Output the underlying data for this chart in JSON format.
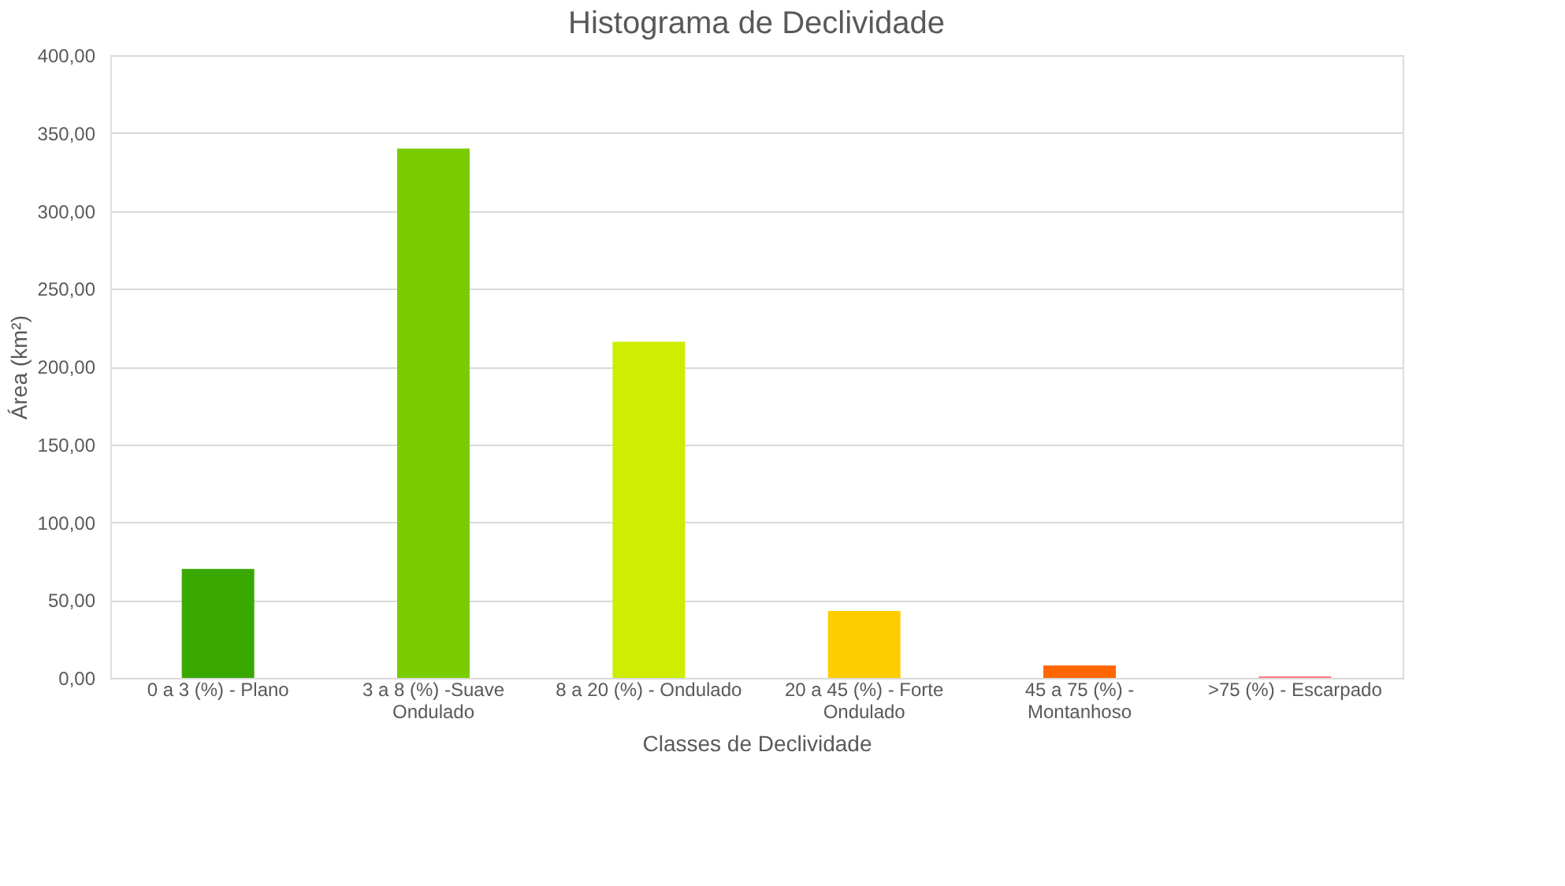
{
  "chart_data": {
    "type": "bar",
    "title": "Histograma de Declividade",
    "xlabel": "Classes de Declividade",
    "ylabel": "Área (km²)",
    "categories": [
      "0 a 3 (%) - Plano",
      "3 a 8 (%) -Suave Ondulado",
      "8 a 20 (%) - Ondulado",
      "20 a 45 (%) - Forte Ondulado",
      "45 a 75 (%) - Montanhoso",
      ">75 (%) - Escarpado"
    ],
    "values": [
      70,
      340,
      216,
      43,
      8,
      1
    ],
    "colors": [
      "#38a800",
      "#7acc00",
      "#ceed00",
      "#ffcc00",
      "#ff6600",
      "#ff7f7f"
    ],
    "ylim": [
      0,
      400
    ],
    "yticks": [
      {
        "value": 0,
        "label": "0,00"
      },
      {
        "value": 50,
        "label": "50,00"
      },
      {
        "value": 100,
        "label": "100,00"
      },
      {
        "value": 150,
        "label": "150,00"
      },
      {
        "value": 200,
        "label": "200,00"
      },
      {
        "value": 250,
        "label": "250,00"
      },
      {
        "value": 300,
        "label": "300,00"
      },
      {
        "value": 350,
        "label": "350,00"
      },
      {
        "value": 400,
        "label": "400,00"
      }
    ],
    "grid": "y"
  }
}
